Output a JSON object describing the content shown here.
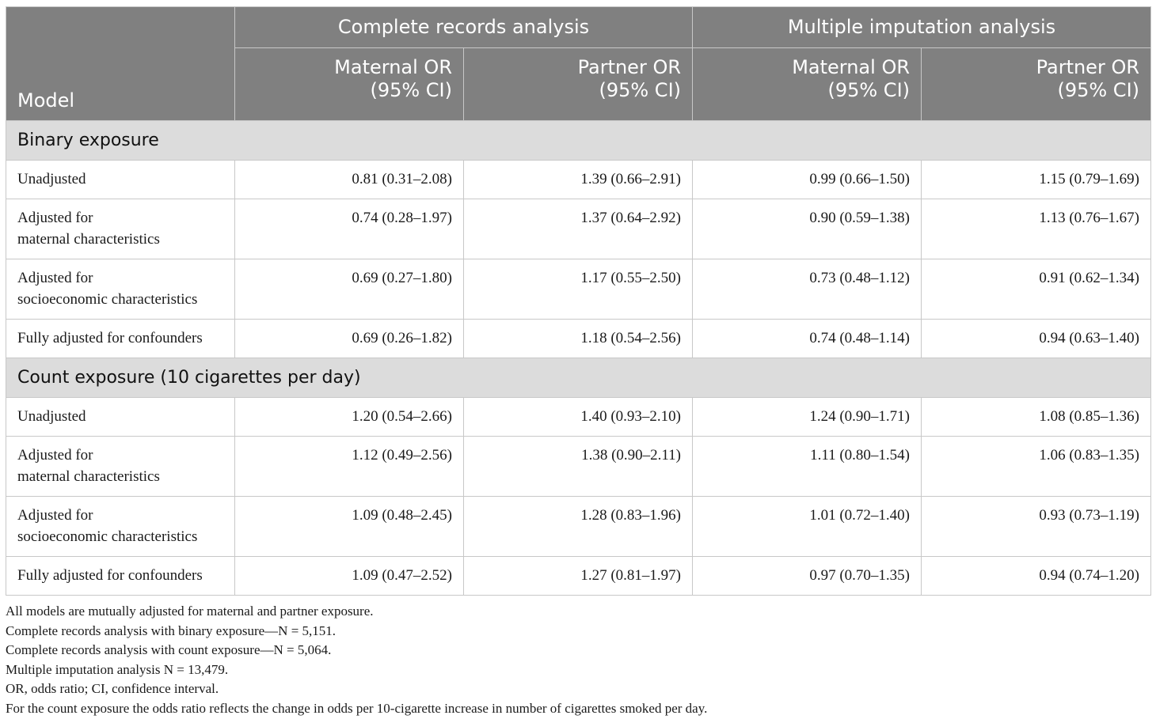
{
  "header": {
    "model_label": "Model",
    "groups": [
      "Complete records analysis",
      "Multiple imputation analysis"
    ],
    "subcols": [
      {
        "line1": "Maternal OR",
        "line2": "(95% CI)"
      },
      {
        "line1": "Partner OR",
        "line2": "(95% CI)"
      },
      {
        "line1": "Maternal OR",
        "line2": "(95% CI)"
      },
      {
        "line1": "Partner OR",
        "line2": "(95% CI)"
      }
    ]
  },
  "sections": [
    {
      "title": "Binary exposure",
      "rows": [
        {
          "line1": "Unadjusted",
          "line2": "",
          "values": [
            "0.81 (0.31–2.08)",
            "1.39 (0.66–2.91)",
            "0.99 (0.66–1.50)",
            "1.15 (0.79–1.69)"
          ]
        },
        {
          "line1": "Adjusted for",
          "line2": "maternal characteristics",
          "values": [
            "0.74 (0.28–1.97)",
            "1.37 (0.64–2.92)",
            "0.90 (0.59–1.38)",
            "1.13 (0.76–1.67)"
          ]
        },
        {
          "line1": "Adjusted for",
          "line2": "socioeconomic characteristics",
          "values": [
            "0.69 (0.27–1.80)",
            "1.17 (0.55–2.50)",
            "0.73 (0.48–1.12)",
            "0.91 (0.62–1.34)"
          ]
        },
        {
          "line1": "Fully adjusted for confounders",
          "line2": "",
          "values": [
            "0.69 (0.26–1.82)",
            "1.18 (0.54–2.56)",
            "0.74 (0.48–1.14)",
            "0.94 (0.63–1.40)"
          ]
        }
      ]
    },
    {
      "title": "Count exposure (10 cigarettes per day)",
      "rows": [
        {
          "line1": "Unadjusted",
          "line2": "",
          "values": [
            "1.20 (0.54–2.66)",
            "1.40 (0.93–2.10)",
            "1.24 (0.90–1.71)",
            "1.08 (0.85–1.36)"
          ]
        },
        {
          "line1": "Adjusted for",
          "line2": "maternal characteristics",
          "values": [
            "1.12 (0.49–2.56)",
            "1.38 (0.90–2.11)",
            "1.11 (0.80–1.54)",
            "1.06 (0.83–1.35)"
          ]
        },
        {
          "line1": "Adjusted for",
          "line2": "socioeconomic characteristics",
          "values": [
            "1.09 (0.48–2.45)",
            "1.28 (0.83–1.96)",
            "1.01 (0.72–1.40)",
            "0.93 (0.73–1.19)"
          ]
        },
        {
          "line1": "Fully adjusted for confounders",
          "line2": "",
          "values": [
            "1.09 (0.47–2.52)",
            "1.27 (0.81–1.97)",
            "0.97 (0.70–1.35)",
            "0.94 (0.74–1.20)"
          ]
        }
      ]
    }
  ],
  "notes": [
    "All models are mutually adjusted for maternal and partner exposure.",
    "Complete records analysis with binary exposure—N = 5,151.",
    "Complete records analysis with count exposure—N = 5,064.",
    "Multiple imputation analysis N = 13,479.",
    "OR, odds ratio; CI, confidence interval.",
    "For the count exposure the odds ratio reflects the change in odds per 10-cigarette increase in number of cigarettes smoked per day."
  ]
}
